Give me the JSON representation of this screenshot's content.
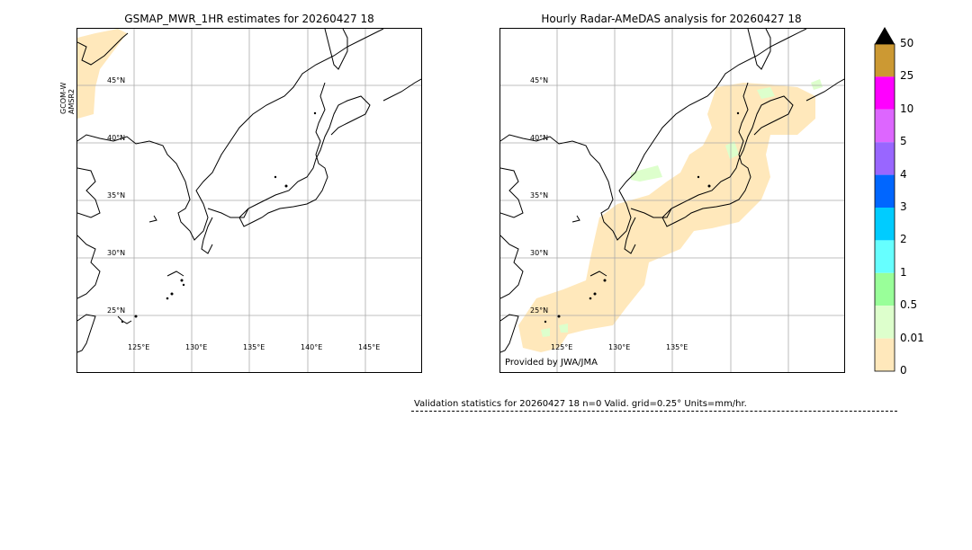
{
  "left_map": {
    "title": "GSMAP_MWR_1HR estimates for 20260427 18",
    "side_label_line1": "GCOM-W",
    "side_label_line2": "AMSR2",
    "lat_labels": [
      "45°N",
      "40°N",
      "35°N",
      "30°N",
      "25°N"
    ],
    "lon_labels": [
      "125°E",
      "130°E",
      "135°E",
      "140°E",
      "145°E"
    ]
  },
  "right_map": {
    "title": "Hourly Radar-AMeDAS analysis for 20260427 18",
    "lat_labels": [
      "45°N",
      "40°N",
      "35°N",
      "30°N",
      "25°N"
    ],
    "lon_labels": [
      "125°E",
      "130°E",
      "135°E"
    ],
    "credit": "Provided by JWA/JMA"
  },
  "colorbar": {
    "labels": [
      "50",
      "25",
      "10",
      "5",
      "4",
      "3",
      "2",
      "1",
      "0.5",
      "0.01",
      "0"
    ],
    "colors": [
      "#cc9933",
      "#ff00ff",
      "#dd66ff",
      "#9966ff",
      "#0066ff",
      "#00ccff",
      "#66ffff",
      "#99ff99",
      "#ddffcc",
      "#ffe8bb"
    ],
    "extend_color": "#000000"
  },
  "validation": {
    "text": "Validation statistics for 20260427 18  n=0 Valid. grid=0.25° Units=mm/hr."
  }
}
